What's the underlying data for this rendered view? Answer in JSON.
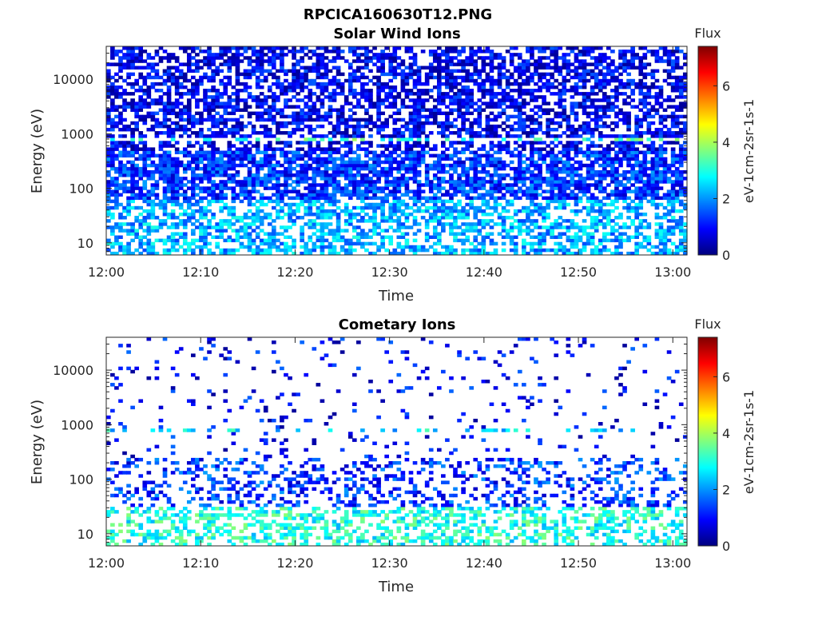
{
  "figure_title": "RPCICA160630T12.PNG",
  "colormap": {
    "name": "jet",
    "stops": [
      "#00007f",
      "#0000ff",
      "#007fff",
      "#00ffff",
      "#7fff7f",
      "#ffff00",
      "#ff7f00",
      "#ff0000",
      "#7f0000"
    ]
  },
  "chart_data": [
    {
      "type": "heatmap",
      "title": "Solar Wind Ions",
      "xlabel": "Time",
      "ylabel": "Energy (eV)",
      "x_range": [
        "12:00",
        "13:01"
      ],
      "x_tick_labels": [
        "12:00",
        "12:10",
        "12:20",
        "12:30",
        "12:40",
        "12:50",
        "13:00"
      ],
      "y_scale": "log",
      "y_range": [
        6,
        40000
      ],
      "y_tick_labels": [
        "10",
        "100",
        "1000",
        "10000"
      ],
      "y_tick_values": [
        10,
        100,
        1000,
        10000
      ],
      "colorbar": {
        "title": "Flux",
        "label": "eV-1cm-2sr-1s-1",
        "range": [
          0,
          7.4
        ],
        "tick_labels": [
          "0",
          "2",
          "4",
          "6"
        ],
        "tick_values": [
          0,
          2,
          4,
          6
        ]
      },
      "features": [
        {
          "energy_band": [
            6,
            60
          ],
          "flux": 2.2,
          "fill": 0.55
        },
        {
          "energy_band": [
            60,
            500
          ],
          "flux": 1.3,
          "fill": 0.75
        },
        {
          "energy_band": [
            500,
            40000
          ],
          "flux": 0.8,
          "fill": 0.6
        },
        {
          "energy_band": [
            700,
            900
          ],
          "flux": 3.2,
          "fill": 0.35
        }
      ]
    },
    {
      "type": "heatmap",
      "title": "Cometary Ions",
      "xlabel": "Time",
      "ylabel": "Energy (eV)",
      "x_range": [
        "12:00",
        "13:01"
      ],
      "x_tick_labels": [
        "12:00",
        "12:10",
        "12:20",
        "12:30",
        "12:40",
        "12:50",
        "13:00"
      ],
      "y_scale": "log",
      "y_range": [
        6,
        40000
      ],
      "y_tick_labels": [
        "10",
        "100",
        "1000",
        "10000"
      ],
      "y_tick_values": [
        10,
        100,
        1000,
        10000
      ],
      "colorbar": {
        "title": "Flux",
        "label": "eV-1cm-2sr-1s-1",
        "range": [
          0,
          7.4
        ],
        "tick_labels": [
          "0",
          "2",
          "4",
          "6"
        ],
        "tick_values": [
          0,
          2,
          4,
          6
        ]
      },
      "features": [
        {
          "energy_band": [
            6,
            30
          ],
          "flux": 3.0,
          "fill": 0.45
        },
        {
          "energy_band": [
            30,
            250
          ],
          "flux": 1.3,
          "fill": 0.3
        },
        {
          "energy_band": [
            250,
            40000
          ],
          "flux": 0.9,
          "fill": 0.06
        },
        {
          "energy_band": [
            700,
            900
          ],
          "flux": 2.6,
          "fill": 0.3
        }
      ]
    }
  ]
}
